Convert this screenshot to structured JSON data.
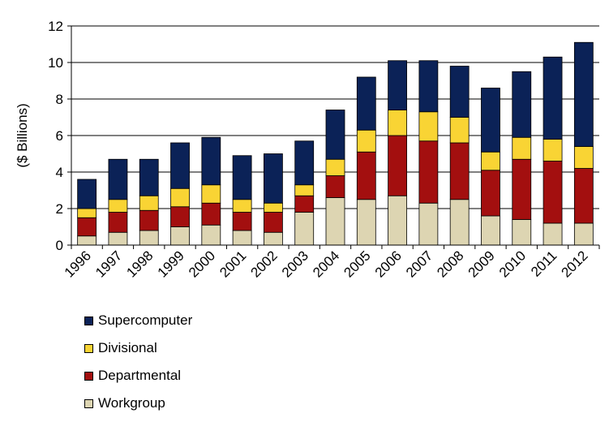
{
  "chart_data": {
    "type": "bar",
    "stacked": true,
    "categories": [
      "1996",
      "1997",
      "1998",
      "1999",
      "2000",
      "2001",
      "2002",
      "2003",
      "2004",
      "2005",
      "2006",
      "2007",
      "2008",
      "2009",
      "2010",
      "2011",
      "2012"
    ],
    "series": [
      {
        "name": "Workgroup",
        "color": "#ddd5b2",
        "values": [
          0.5,
          0.7,
          0.8,
          1.0,
          1.1,
          0.8,
          0.7,
          1.8,
          2.6,
          2.5,
          2.7,
          2.3,
          2.5,
          1.6,
          1.4,
          1.2,
          1.2
        ]
      },
      {
        "name": "Departmental",
        "color": "#a30f0f",
        "values": [
          1.0,
          1.1,
          1.1,
          1.1,
          1.2,
          1.0,
          1.1,
          0.9,
          1.2,
          2.6,
          3.3,
          3.4,
          3.1,
          2.5,
          3.3,
          3.4,
          3.0
        ]
      },
      {
        "name": "Divisional",
        "color": "#f9d434",
        "values": [
          0.5,
          0.7,
          0.8,
          1.0,
          1.0,
          0.7,
          0.5,
          0.6,
          0.9,
          1.2,
          1.4,
          1.6,
          1.4,
          1.0,
          1.2,
          1.2,
          1.2
        ]
      },
      {
        "name": "Supercomputer",
        "color": "#0b2257",
        "values": [
          1.6,
          2.2,
          2.0,
          2.5,
          2.6,
          2.4,
          2.7,
          2.4,
          2.7,
          2.9,
          2.7,
          2.8,
          2.8,
          3.5,
          3.6,
          4.5,
          5.7
        ]
      }
    ],
    "legend_order": [
      "Supercomputer",
      "Divisional",
      "Departmental",
      "Workgroup"
    ],
    "ylabel": "($ Billions)",
    "xlabel": "",
    "title": "",
    "ylim": [
      0,
      12
    ],
    "yticks": [
      0,
      2,
      4,
      6,
      8,
      10,
      12
    ],
    "grid": true,
    "legend_position": "bottom-left"
  }
}
